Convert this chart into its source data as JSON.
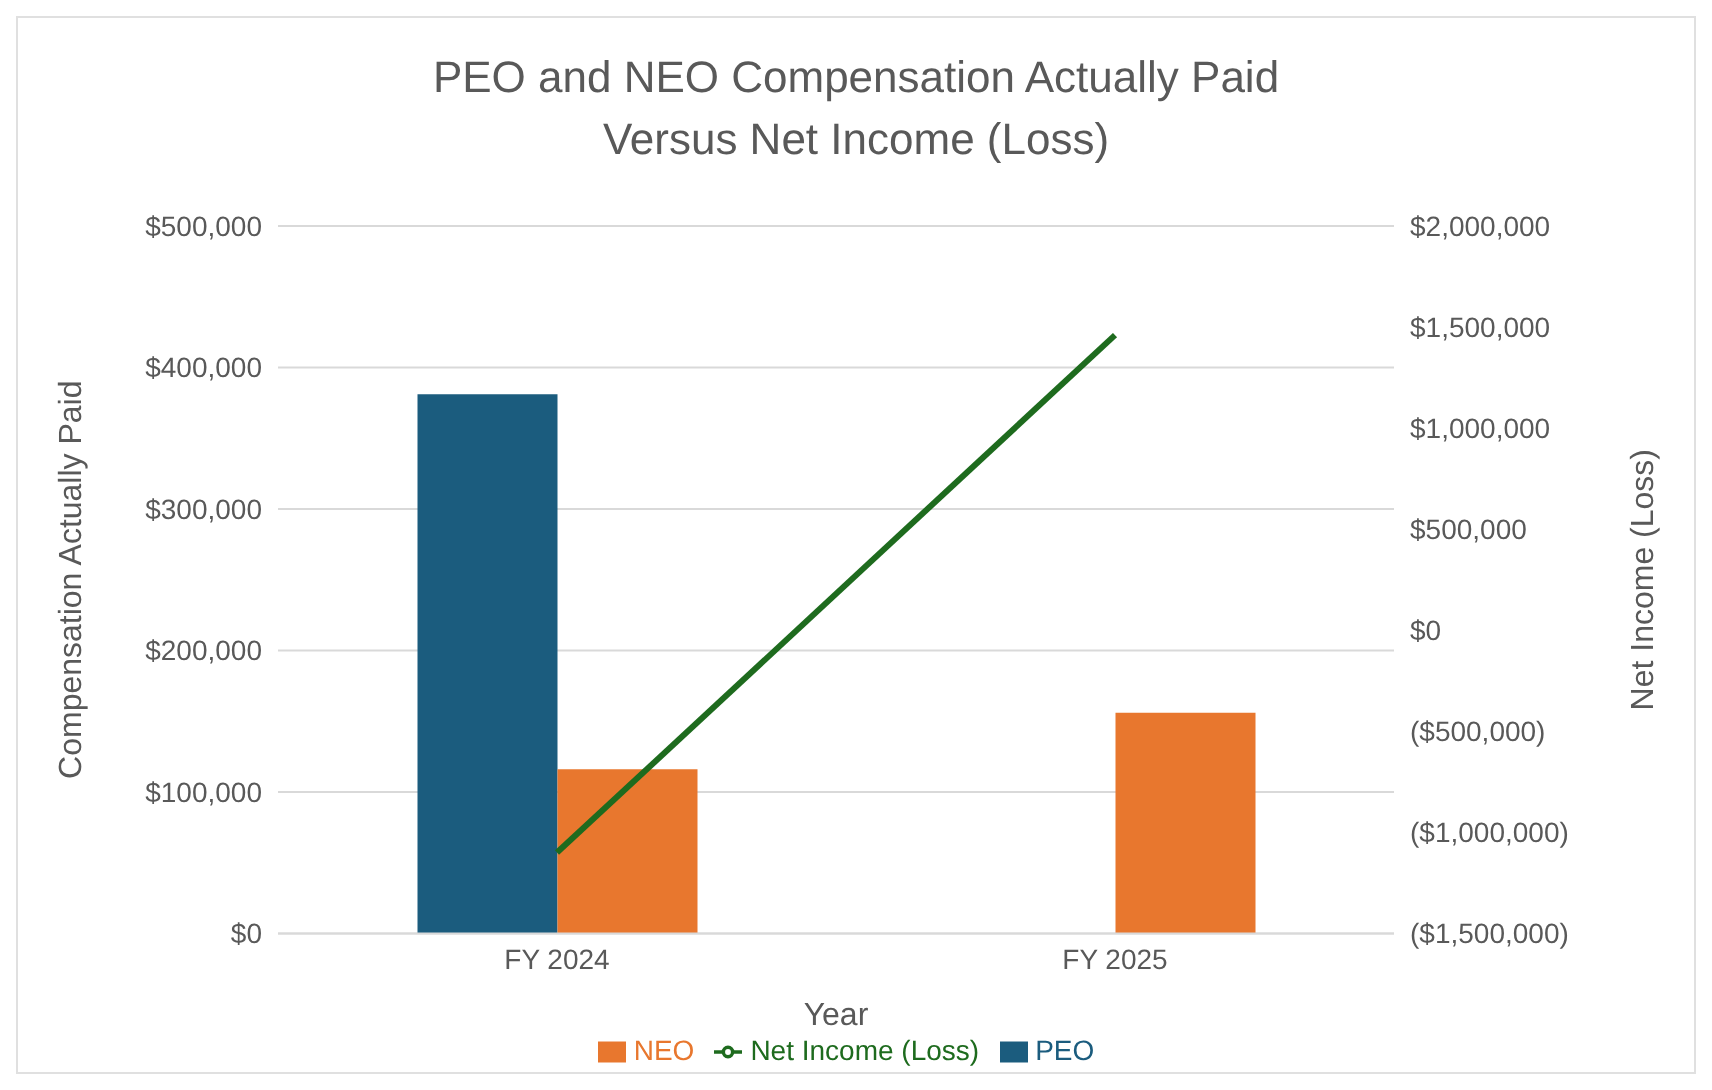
{
  "chart_data": {
    "type": "bar",
    "title": "PEO and NEO Compensation Actually Paid\nVersus Net Income (Loss)",
    "xlabel": "Year",
    "ylabel": "Compensation Actually Paid",
    "y2label": "Net Income (Loss)",
    "categories": [
      "FY 2024",
      "FY 2025"
    ],
    "series": [
      {
        "name": "PEO",
        "color": "#1b5c7e",
        "values": [
          381000,
          null
        ]
      },
      {
        "name": "NEO",
        "color": "#e8772e",
        "values": [
          116000,
          156000
        ]
      },
      {
        "name": "Net Income (Loss)",
        "type": "line",
        "axis": "y2",
        "color": "#1e6b1e",
        "values": [
          -1100000,
          1460000
        ]
      }
    ],
    "ylim": [
      0,
      500000
    ],
    "yticks": [
      {
        "value": 0,
        "label": "$0"
      },
      {
        "value": 100000,
        "label": "$100,000"
      },
      {
        "value": 200000,
        "label": "$200,000"
      },
      {
        "value": 300000,
        "label": "$300,000"
      },
      {
        "value": 400000,
        "label": "$400,000"
      },
      {
        "value": 500000,
        "label": "$500,000"
      }
    ],
    "y2lim": [
      -1500000,
      2000000
    ],
    "y2ticks": [
      {
        "value": -1500000,
        "label": "($1,500,000)"
      },
      {
        "value": -1000000,
        "label": "($1,000,000)"
      },
      {
        "value": -500000,
        "label": "($500,000)"
      },
      {
        "value": 0,
        "label": "$0"
      },
      {
        "value": 500000,
        "label": "$500,000"
      },
      {
        "value": 1000000,
        "label": "$1,000,000"
      },
      {
        "value": 1500000,
        "label": "$1,500,000"
      },
      {
        "value": 2000000,
        "label": "$2,000,000"
      }
    ],
    "grid": "y",
    "legend": "bottom",
    "marker": "none",
    "line_style": "solid"
  }
}
